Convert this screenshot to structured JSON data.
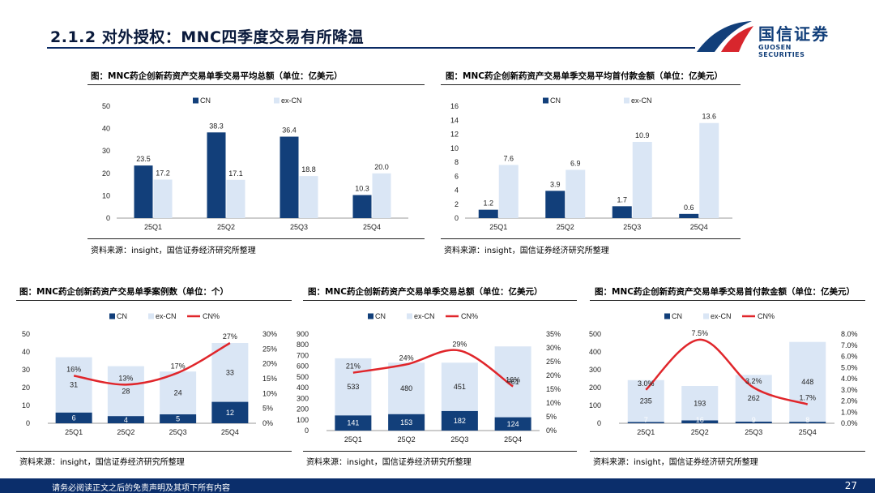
{
  "header": {
    "title": "2.1.2 对外授权：MNC四季度交易有所降温"
  },
  "logo": {
    "cn": "国信证券",
    "en": "GUOSEN SECURITIES"
  },
  "footer": {
    "disclaimer": "请务必阅读正文之后的免责声明及其项下所有内容",
    "page": "27"
  },
  "colors": {
    "cn": "#123f7a",
    "excn": "#dae6f5",
    "pct": "#e0262b"
  },
  "panels": [
    {
      "title": "图：MNC药企创新药资产交易单季交易平均总额（单位：亿美元）",
      "source": "资料来源：insight，国信证券经济研究所整理"
    },
    {
      "title": "图：MNC药企创新药资产交易单季交易平均首付款金额（单位：亿美元）",
      "source": "资料来源：insight，国信证券经济研究所整理"
    },
    {
      "title": "图：MNC药企创新药资产交易单季案例数（单位：个）",
      "source": "资料来源：insight，国信证券经济研究所整理"
    },
    {
      "title": "图：MNC药企创新药资产交易单季交易总额（单位：亿美元）",
      "source": "资料来源：insight，国信证券经济研究所整理"
    },
    {
      "title": "图：MNC药企创新药资产交易单季交易首付款金额（单位：亿美元）",
      "source": "资料来源：insight，国信证券经济研究所整理"
    }
  ],
  "chart_data": [
    {
      "type": "bar",
      "categories": [
        "25Q1",
        "25Q2",
        "25Q3",
        "25Q4"
      ],
      "series": [
        {
          "name": "CN",
          "values": [
            23.5,
            38.3,
            36.4,
            10.3
          ]
        },
        {
          "name": "ex-CN",
          "values": [
            17.2,
            17.1,
            18.8,
            20.0
          ]
        }
      ],
      "ylim": [
        0,
        50
      ],
      "yticks": [
        0,
        10,
        20,
        30,
        40,
        50
      ],
      "yticklabels": [
        "0",
        "10",
        "20",
        "30",
        "40",
        "50"
      ],
      "labels": [
        [
          "23.5",
          "38.3",
          "36.4",
          "10.3"
        ],
        [
          "17.2",
          "17.1",
          "18.8",
          "20.0"
        ]
      ]
    },
    {
      "type": "bar",
      "categories": [
        "25Q1",
        "25Q2",
        "25Q3",
        "25Q4"
      ],
      "series": [
        {
          "name": "CN",
          "values": [
            1.2,
            3.9,
            1.7,
            0.6
          ]
        },
        {
          "name": "ex-CN",
          "values": [
            7.6,
            6.9,
            10.9,
            13.6
          ]
        }
      ],
      "ylim": [
        0,
        16
      ],
      "yticks": [
        0,
        2,
        4,
        6,
        8,
        10,
        12,
        14,
        16
      ],
      "yticklabels": [
        "0",
        "2",
        "4",
        "6",
        "8",
        "10",
        "12",
        "14",
        "16"
      ],
      "labels": [
        [
          "1.2",
          "3.9",
          "1.7",
          "0.6"
        ],
        [
          "7.6",
          "6.9",
          "10.9",
          "13.6"
        ]
      ]
    },
    {
      "type": "stacked-bar+line",
      "categories": [
        "25Q1",
        "25Q2",
        "25Q3",
        "25Q4"
      ],
      "series": [
        {
          "name": "CN",
          "values": [
            6,
            4,
            5,
            12
          ]
        },
        {
          "name": "ex-CN",
          "values": [
            31,
            28,
            24,
            33
          ]
        },
        {
          "name": "CN%",
          "values": [
            16,
            13,
            17,
            27
          ]
        }
      ],
      "ylim": [
        0,
        50
      ],
      "yticks": [
        0,
        10,
        20,
        30,
        40,
        50
      ],
      "yticklabels": [
        "0",
        "10",
        "20",
        "30",
        "40",
        "50"
      ],
      "y2lim": [
        0,
        30
      ],
      "y2ticks": [
        0,
        5,
        10,
        15,
        20,
        25,
        30
      ],
      "y2ticklabels": [
        "0%",
        "5%",
        "10%",
        "15%",
        "20%",
        "25%",
        "30%"
      ],
      "cnLabels": [
        "6",
        "4",
        "5",
        "12"
      ],
      "exLabels": [
        "31",
        "28",
        "24",
        "33"
      ],
      "pctLabels": [
        "16%",
        "13%",
        "17%",
        "27%"
      ]
    },
    {
      "type": "stacked-bar+line",
      "categories": [
        "25Q1",
        "25Q2",
        "25Q3",
        "25Q4"
      ],
      "series": [
        {
          "name": "CN",
          "values": [
            141,
            153,
            182,
            124
          ]
        },
        {
          "name": "ex-CN",
          "values": [
            533,
            480,
            451,
            661
          ]
        },
        {
          "name": "CN%",
          "values": [
            21,
            24,
            29,
            16
          ]
        }
      ],
      "ylim": [
        0,
        900
      ],
      "yticks": [
        0,
        100,
        200,
        300,
        400,
        500,
        600,
        700,
        800,
        900
      ],
      "yticklabels": [
        "0",
        "100",
        "200",
        "300",
        "400",
        "500",
        "600",
        "700",
        "800",
        "900"
      ],
      "y2lim": [
        0,
        35
      ],
      "y2ticks": [
        0,
        5,
        10,
        15,
        20,
        25,
        30,
        35
      ],
      "y2ticklabels": [
        "0%",
        "5%",
        "10%",
        "15%",
        "20%",
        "25%",
        "30%",
        "35%"
      ],
      "cnLabels": [
        "141",
        "153",
        "182",
        "124"
      ],
      "exLabels": [
        "533",
        "480",
        "451",
        "661"
      ],
      "pctLabels": [
        "21%",
        "24%",
        "29%",
        "16%"
      ]
    },
    {
      "type": "stacked-bar+line",
      "categories": [
        "25Q1",
        "25Q2",
        "25Q3",
        "25Q4"
      ],
      "series": [
        {
          "name": "CN",
          "values": [
            7,
            16,
            9,
            8
          ]
        },
        {
          "name": "ex-CN",
          "values": [
            235,
            193,
            262,
            448
          ]
        },
        {
          "name": "CN%",
          "values": [
            3.0,
            7.5,
            3.2,
            1.7
          ]
        }
      ],
      "ylim": [
        0,
        500
      ],
      "yticks": [
        0,
        100,
        200,
        300,
        400,
        500
      ],
      "yticklabels": [
        "0",
        "100",
        "200",
        "300",
        "400",
        "500"
      ],
      "y2lim": [
        0,
        8
      ],
      "y2ticks": [
        0,
        1,
        2,
        3,
        4,
        5,
        6,
        7,
        8
      ],
      "y2ticklabels": [
        "0.0%",
        "1.0%",
        "2.0%",
        "3.0%",
        "4.0%",
        "5.0%",
        "6.0%",
        "7.0%",
        "8.0%"
      ],
      "cnLabels": [
        "7",
        "16",
        "9",
        "8"
      ],
      "exLabels": [
        "235",
        "193",
        "262",
        "448"
      ],
      "pctLabels": [
        "3.0%",
        "7.5%",
        "3.2%",
        "1.7%"
      ]
    }
  ]
}
